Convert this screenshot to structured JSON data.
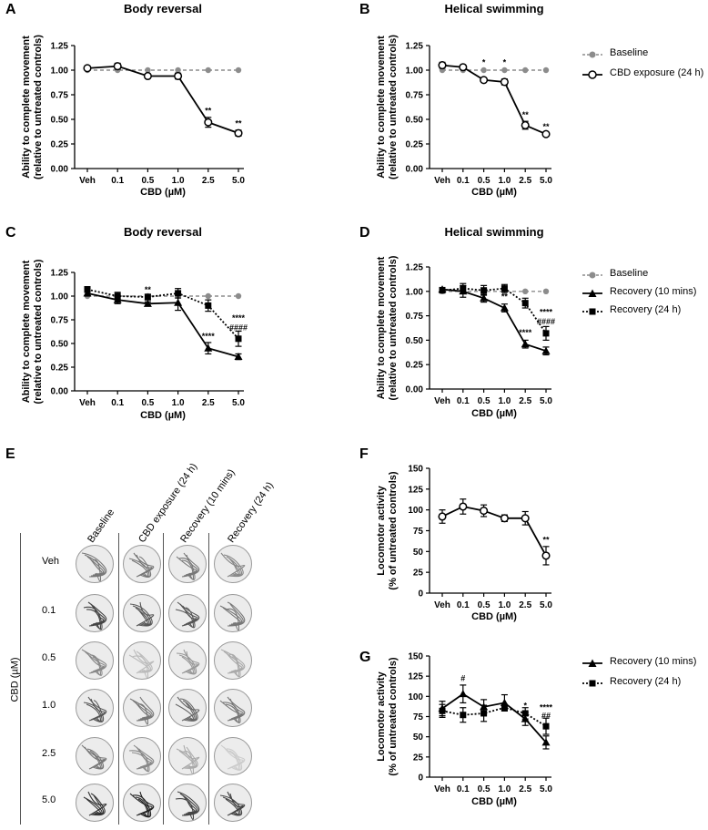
{
  "panel_letters": [
    "A",
    "B",
    "C",
    "D",
    "E",
    "F",
    "G"
  ],
  "colors": {
    "baseline": "#8c8c8c",
    "series": "#000000",
    "grid_bg": "#ececec"
  },
  "panel_e": {
    "columns": [
      "Baseline",
      "CBD exposure (24 h)",
      "Recovery (10 mins)",
      "Recovery (24 h)"
    ],
    "rows": [
      "Veh",
      "0.1",
      "0.5",
      "1.0",
      "2.5",
      "5.0"
    ],
    "axis_label": "CBD (µM)"
  },
  "chart_data": [
    {
      "id": "A",
      "type": "line",
      "title": "Body reversal",
      "xlabel": "CBD (µM)",
      "ylabel": [
        "Ability to complete movement",
        "(relative to untreated controls)"
      ],
      "categories": [
        "Veh",
        "0.1",
        "0.5",
        "1.0",
        "2.5",
        "5.0"
      ],
      "ylim": [
        0,
        1.25
      ],
      "yticks": [
        "0.00",
        "0.25",
        "0.50",
        "0.75",
        "1.00",
        "1.25"
      ],
      "series": [
        {
          "name": "Baseline",
          "style": "baseline",
          "values": [
            1.0,
            1.0,
            1.0,
            1.0,
            1.0,
            1.0
          ],
          "err": [
            0,
            0,
            0,
            0,
            0,
            0
          ]
        },
        {
          "name": "CBD exposure (24 h)",
          "style": "open",
          "values": [
            1.02,
            1.04,
            0.94,
            0.94,
            0.47,
            0.36
          ],
          "err": [
            0.02,
            0.03,
            0.01,
            0.03,
            0.05,
            0.03
          ]
        }
      ],
      "annotations": [
        {
          "x": 4,
          "y": 0.56,
          "text": "**"
        },
        {
          "x": 5,
          "y": 0.43,
          "text": "**"
        }
      ]
    },
    {
      "id": "B",
      "type": "line",
      "title": "Helical swimming",
      "xlabel": "CBD (µM)",
      "ylabel": [
        "Ability to complete movement",
        "(relative to untreated controls)"
      ],
      "categories": [
        "Veh",
        "0.1",
        "0.5",
        "1.0",
        "2.5",
        "5.0"
      ],
      "ylim": [
        0,
        1.25
      ],
      "yticks": [
        "0.00",
        "0.25",
        "0.50",
        "0.75",
        "1.00",
        "1.25"
      ],
      "series": [
        {
          "name": "Baseline",
          "style": "baseline",
          "values": [
            1.0,
            1.0,
            1.0,
            1.0,
            1.0,
            1.0
          ],
          "err": [
            0,
            0,
            0,
            0,
            0,
            0
          ]
        },
        {
          "name": "CBD exposure (24 h)",
          "style": "open",
          "values": [
            1.05,
            1.03,
            0.9,
            0.88,
            0.44,
            0.35
          ],
          "err": [
            0.03,
            0.02,
            0.01,
            0.03,
            0.04,
            0.01
          ]
        }
      ],
      "annotations": [
        {
          "x": 2,
          "y": 1.05,
          "text": "*"
        },
        {
          "x": 3,
          "y": 1.05,
          "text": "*"
        },
        {
          "x": 4,
          "y": 0.52,
          "text": "**"
        },
        {
          "x": 5,
          "y": 0.4,
          "text": "**"
        }
      ]
    },
    {
      "id": "C",
      "type": "line",
      "title": "Body reversal",
      "xlabel": "CBD (µM)",
      "ylabel": [
        "Ability to complete movement",
        "(relative to untreated controls)"
      ],
      "categories": [
        "Veh",
        "0.1",
        "0.5",
        "1.0",
        "2.5",
        "5.0"
      ],
      "ylim": [
        0,
        1.25
      ],
      "yticks": [
        "0.00",
        "0.25",
        "0.50",
        "0.75",
        "1.00",
        "1.25"
      ],
      "series": [
        {
          "name": "Baseline",
          "style": "baseline",
          "values": [
            1.0,
            1.0,
            1.0,
            1.0,
            1.0,
            1.0
          ],
          "err": [
            0,
            0,
            0,
            0,
            0,
            0
          ]
        },
        {
          "name": "Recovery (10 mins)",
          "style": "triangle",
          "values": [
            1.03,
            0.96,
            0.92,
            0.93,
            0.45,
            0.36
          ],
          "err": [
            0.03,
            0.04,
            0.02,
            0.08,
            0.06,
            0.03
          ]
        },
        {
          "name": "Recovery (24 h)",
          "style": "square",
          "values": [
            1.07,
            1.0,
            0.99,
            1.03,
            0.9,
            0.55
          ],
          "err": [
            0.03,
            0.04,
            0.03,
            0.05,
            0.06,
            0.08
          ]
        }
      ],
      "annotations": [
        {
          "x": 2,
          "y": 1.04,
          "text": "**"
        },
        {
          "x": 4,
          "y": 0.55,
          "text": "****"
        },
        {
          "x": 5,
          "y": 0.74,
          "text": "****"
        },
        {
          "x": 5,
          "y": 0.64,
          "text": "####"
        }
      ]
    },
    {
      "id": "D",
      "type": "line",
      "title": "Helical swimming",
      "xlabel": "CBD (µM)",
      "ylabel": [
        "Ability to complete movement",
        "(relative to untreated controls)"
      ],
      "categories": [
        "Veh",
        "0.1",
        "0.5",
        "1.0",
        "2.5",
        "5.0"
      ],
      "ylim": [
        0,
        1.25
      ],
      "yticks": [
        "0.00",
        "0.25",
        "0.50",
        "0.75",
        "1.00",
        "1.25"
      ],
      "series": [
        {
          "name": "Baseline",
          "style": "baseline",
          "values": [
            1.0,
            1.0,
            1.0,
            1.0,
            1.0,
            1.0
          ],
          "err": [
            0,
            0,
            0,
            0,
            0,
            0
          ]
        },
        {
          "name": "Recovery (10 mins)",
          "style": "triangle",
          "values": [
            1.02,
            1.0,
            0.93,
            0.83,
            0.46,
            0.39
          ],
          "err": [
            0.02,
            0.06,
            0.04,
            0.04,
            0.04,
            0.04
          ]
        },
        {
          "name": "Recovery (24 h)",
          "style": "square",
          "values": [
            1.01,
            1.03,
            1.01,
            1.03,
            0.88,
            0.57
          ],
          "err": [
            0.02,
            0.05,
            0.05,
            0.04,
            0.05,
            0.07
          ]
        }
      ],
      "annotations": [
        {
          "x": 3,
          "y": 0.92,
          "text": "**"
        },
        {
          "x": 4,
          "y": 0.55,
          "text": "****"
        },
        {
          "x": 5,
          "y": 0.76,
          "text": "****"
        },
        {
          "x": 5,
          "y": 0.66,
          "text": "####"
        }
      ]
    },
    {
      "id": "F",
      "type": "line",
      "title": "",
      "xlabel": "CBD (µM)",
      "ylabel": [
        "Locomotor activity",
        "(% of untreated controls)"
      ],
      "categories": [
        "Veh",
        "0.1",
        "0.5",
        "1.0",
        "2.5",
        "5.0"
      ],
      "ylim": [
        0,
        150
      ],
      "yticks": [
        "0",
        "25",
        "50",
        "75",
        "100",
        "125",
        "150"
      ],
      "series": [
        {
          "name": "",
          "style": "open",
          "values": [
            92,
            104,
            99,
            90,
            90,
            45
          ],
          "err": [
            8,
            9,
            7,
            4,
            8,
            11
          ]
        }
      ],
      "annotations": [
        {
          "x": 5,
          "y": 61,
          "text": "**"
        }
      ]
    },
    {
      "id": "G",
      "type": "line",
      "title": "",
      "xlabel": "CBD (µM)",
      "ylabel": [
        "Locomotor activity",
        "(% of untreated controls)"
      ],
      "categories": [
        "Veh",
        "0.1",
        "0.5",
        "1.0",
        "2.5",
        "5.0"
      ],
      "ylim": [
        0,
        150
      ],
      "yticks": [
        "0",
        "25",
        "50",
        "75",
        "100",
        "125",
        "150"
      ],
      "series": [
        {
          "name": "Recovery (10 mins)",
          "style": "triangle",
          "values": [
            85,
            103,
            87,
            92,
            72,
            43
          ],
          "err": [
            9,
            11,
            9,
            10,
            8,
            8
          ]
        },
        {
          "name": "Recovery (24 h)",
          "style": "square",
          "values": [
            82,
            77,
            79,
            86,
            79,
            63
          ],
          "err": [
            8,
            9,
            10,
            4,
            7,
            10
          ]
        }
      ],
      "annotations": [
        {
          "x": 1,
          "y": 119,
          "text": "#"
        },
        {
          "x": 4,
          "y": 85,
          "text": "*"
        },
        {
          "x": 5,
          "y": 83,
          "text": "****"
        },
        {
          "x": 5,
          "y": 73,
          "text": "##"
        }
      ]
    }
  ],
  "legends": {
    "top": [
      "Baseline",
      "CBD exposure (24 h)"
    ],
    "middle": [
      "Baseline",
      "Recovery (10 mins)",
      "Recovery (24 h)"
    ],
    "bottom": [
      "Recovery (10 mins)",
      "Recovery (24 h)"
    ]
  }
}
